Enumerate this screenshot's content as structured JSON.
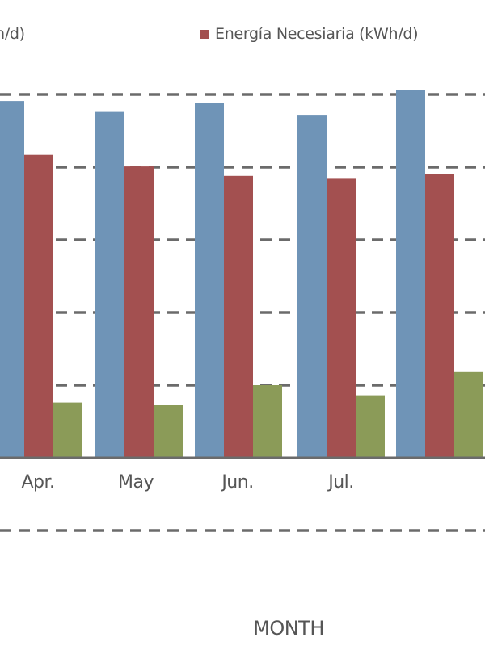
{
  "chart_data": {
    "type": "bar",
    "xlabel": "MONTH",
    "categories": [
      "Apr.",
      "May",
      "Jun.",
      "Jul.",
      ""
    ],
    "ylim": [
      0,
      50
    ],
    "grid": true,
    "series": [
      {
        "name": "",
        "legend_text": "h/d)",
        "color": "#6f94b7",
        "values": [
          49.1,
          47.6,
          48.8,
          47.1,
          50.6
        ]
      },
      {
        "name": "Energía Necesiaria (kWh/d)",
        "legend_text": "Energía Necesiaria (kWh/d)",
        "color": "#a35050",
        "values": [
          41.7,
          40.1,
          38.8,
          38.4,
          39.1
        ]
      },
      {
        "name": "",
        "legend_text": "",
        "color": "#8b9b58",
        "values": [
          7.6,
          7.3,
          10.0,
          8.6,
          11.8
        ]
      }
    ],
    "extra_gridline_values": [
      -10
    ]
  }
}
